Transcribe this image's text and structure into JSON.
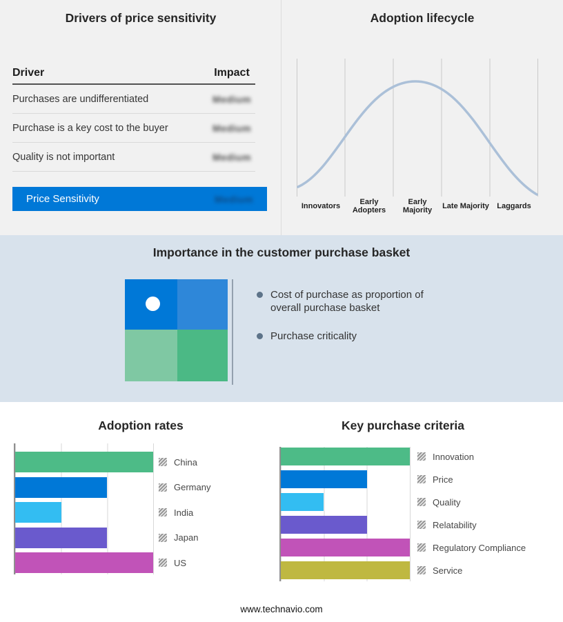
{
  "drivers_panel": {
    "title": "Drivers of price sensitivity",
    "columns": {
      "driver": "Driver",
      "impact": "Impact"
    },
    "rows": [
      {
        "label": "Purchases are undifferentiated",
        "impact": "Medium"
      },
      {
        "label": "Purchase is a key cost to the buyer",
        "impact": "Medium"
      },
      {
        "label": "Quality is not important",
        "impact": "Medium"
      }
    ],
    "summary_row": {
      "label": "Price Sensitivity",
      "impact": "Medium",
      "background": "#0078d7"
    }
  },
  "basket_panel": {
    "title": "Importance in the customer purchase basket",
    "bullets": [
      "Cost of purchase as proportion of overall purchase basket",
      "Purchase criticality"
    ],
    "matrix_icon": {
      "quadrant_colors": [
        "#0078d7",
        "#2e87d9",
        "#7fc8a3",
        "#4bb985"
      ],
      "dot_color": "#ffffff"
    },
    "background": "#d8e2ec"
  },
  "footer": {
    "website": "www.technavio.com"
  },
  "chart_data": [
    {
      "id": "adoption-rates",
      "type": "bar",
      "orientation": "horizontal",
      "title": "Adoption rates",
      "categories": [
        "China",
        "Germany",
        "India",
        "Japan",
        "US"
      ],
      "values": [
        3,
        2,
        1,
        2,
        3
      ],
      "colors": [
        "#4dbb87",
        "#0078d7",
        "#33bdf2",
        "#6a5acd",
        "#c153b8"
      ],
      "xlim": [
        0,
        3
      ],
      "grid": true,
      "legend_position": "right"
    },
    {
      "id": "key-purchase-criteria",
      "type": "bar",
      "orientation": "horizontal",
      "title": "Key purchase criteria",
      "categories": [
        "Innovation",
        "Price",
        "Quality",
        "Relatability",
        "Regulatory Compliance",
        "Service"
      ],
      "values": [
        3,
        2,
        1,
        2,
        3,
        3
      ],
      "colors": [
        "#4dbb87",
        "#0078d7",
        "#33bdf2",
        "#6a5acd",
        "#c153b8",
        "#bfb841"
      ],
      "xlim": [
        0,
        3
      ],
      "grid": true,
      "legend_position": "right"
    },
    {
      "id": "adoption-lifecycle",
      "type": "line",
      "shape": "bell-curve",
      "title": "Adoption lifecycle",
      "categories": [
        "Innovators",
        "Early Adopters",
        "Early Majority",
        "Late Majority",
        "Laggards"
      ],
      "values": [
        0.25,
        0.8,
        1.0,
        0.8,
        0.25
      ],
      "color": "#abc0d8",
      "grid": true
    }
  ]
}
